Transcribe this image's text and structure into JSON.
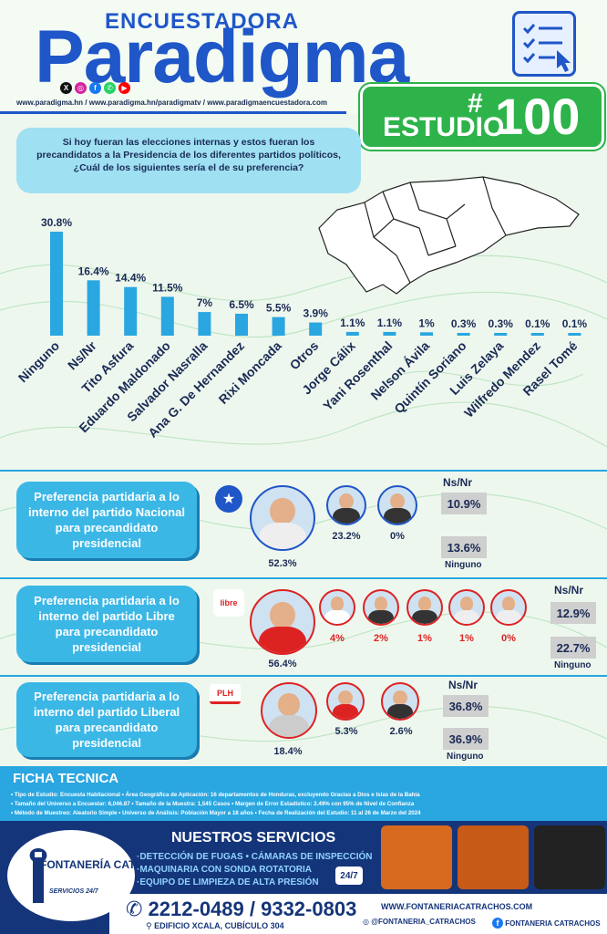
{
  "header": {
    "brand_small": "ENCUESTADORA",
    "brand_big": "Paradigma",
    "urls": "www.paradigma.hn  /  www.paradigma.hn/paradigmatv  /  www.paradigmaencuestadora.com",
    "study_hash": "#",
    "study_label": "ESTUDIO",
    "study_number": "100"
  },
  "question": "Si hoy fueran las elecciones internas y estos fueran los precandidatos a la Presidencia de los diferentes partidos políticos, ¿Cuál de los siguientes sería el de su preferencia?",
  "chart_data": {
    "type": "bar",
    "categories": [
      "Ninguno",
      "Ns/Nr",
      "Tito Asfura",
      "Eduardo Maldonado",
      "Salvador Nasralla",
      "Ana G. De Hernandez",
      "Rixi Moncada",
      "Otros",
      "Jorge Cálix",
      "Yani Rosenthal",
      "Nelson Ávila",
      "Quintín Soriano",
      "Luis Zelaya",
      "Wilfredo Mendez",
      "Rasel Tomé"
    ],
    "values": [
      30.8,
      16.4,
      14.4,
      11.5,
      7,
      6.5,
      5.5,
      3.9,
      1.1,
      1.1,
      1,
      0.3,
      0.3,
      0.1,
      0.1
    ],
    "labels": [
      "30.8%",
      "16.4%",
      "14.4%",
      "11.5%",
      "7%",
      "6.5%",
      "5.5%",
      "3.9%",
      "1.1%",
      "1.1%",
      "1%",
      "0.3%",
      "0.3%",
      "0.1%",
      "0.1%"
    ],
    "bar_color": "#2aa6e0"
  },
  "parties": {
    "nacional": {
      "title": "Preferencia partidaria a lo interno del partido Nacional para precandidato presidencial",
      "main_pct": "52.3%",
      "others": [
        "23.2%",
        "0%"
      ],
      "nsnr_label": "Ns/Nr",
      "nsnr": "10.9%",
      "ninguno": "13.6%",
      "ninguno_label": "Ninguno"
    },
    "libre": {
      "title": "Preferencia partidaria a lo interno del partido Libre para precandidato presidencial",
      "logo": "libre",
      "main_pct": "56.4%",
      "others": [
        "4%",
        "2%",
        "1%",
        "1%",
        "0%"
      ],
      "nsnr_label": "Ns/Nr",
      "nsnr": "12.9%",
      "ninguno": "22.7%",
      "ninguno_label": "Ninguno"
    },
    "liberal": {
      "title": "Preferencia partidaria a lo interno del partido Liberal para precandidato presidencial",
      "logo": "PLH",
      "main_pct": "18.4%",
      "others": [
        "5.3%",
        "2.6%"
      ],
      "nsnr_label": "Ns/Nr",
      "nsnr": "36.8%",
      "ninguno": "36.9%",
      "ninguno_label": "Ninguno"
    }
  },
  "ficha": {
    "title": "FICHA TECNICA",
    "line1": "• Tipo de Estudio: Encuesta Habitacional  • Área Geográfica de Aplicación: 16 departamentos de Honduras, excluyendo Gracias a Dios e Islas de la Bahía",
    "line2": "• Tamaño del Universo a Encuestar: 6,046.87  • Tamaño de la Muestra: 1,545 Casos  • Margen de Error Estadístico: 2.49% con 95% de Nivel de Confianza",
    "line3": "• Método de Muestreo: Aleatorio Simple  • Universo de Análisis: Población Mayor a 18 años  • Fecha de Realización del Estudio: 11 al 26 de Marzo del 2024"
  },
  "ad": {
    "brand": "FONTANERÍA CATRACHOS",
    "brand_sub": "SERVICIOS 24/7",
    "services_title": "NUESTROS SERVICIOS",
    "services": [
      "·DETECCIÓN DE FUGAS • CÁMARAS DE INSPECCIÓN",
      "·MAQUINARIA CON SONDA ROTATORIA",
      "·EQUIPO DE LIMPIEZA DE ALTA PRESIÓN"
    ],
    "badge": "24/7",
    "phone": "2212-0489 / 9332-0803",
    "address": "EDIFICIO XCALA, CUBÍCULO 304",
    "web": "WWW.FONTANERIACATRACHOS.COM",
    "instagram": "@FONTANERIA_CATRACHOS",
    "facebook": "FONTANERIA CATRACHOS"
  }
}
